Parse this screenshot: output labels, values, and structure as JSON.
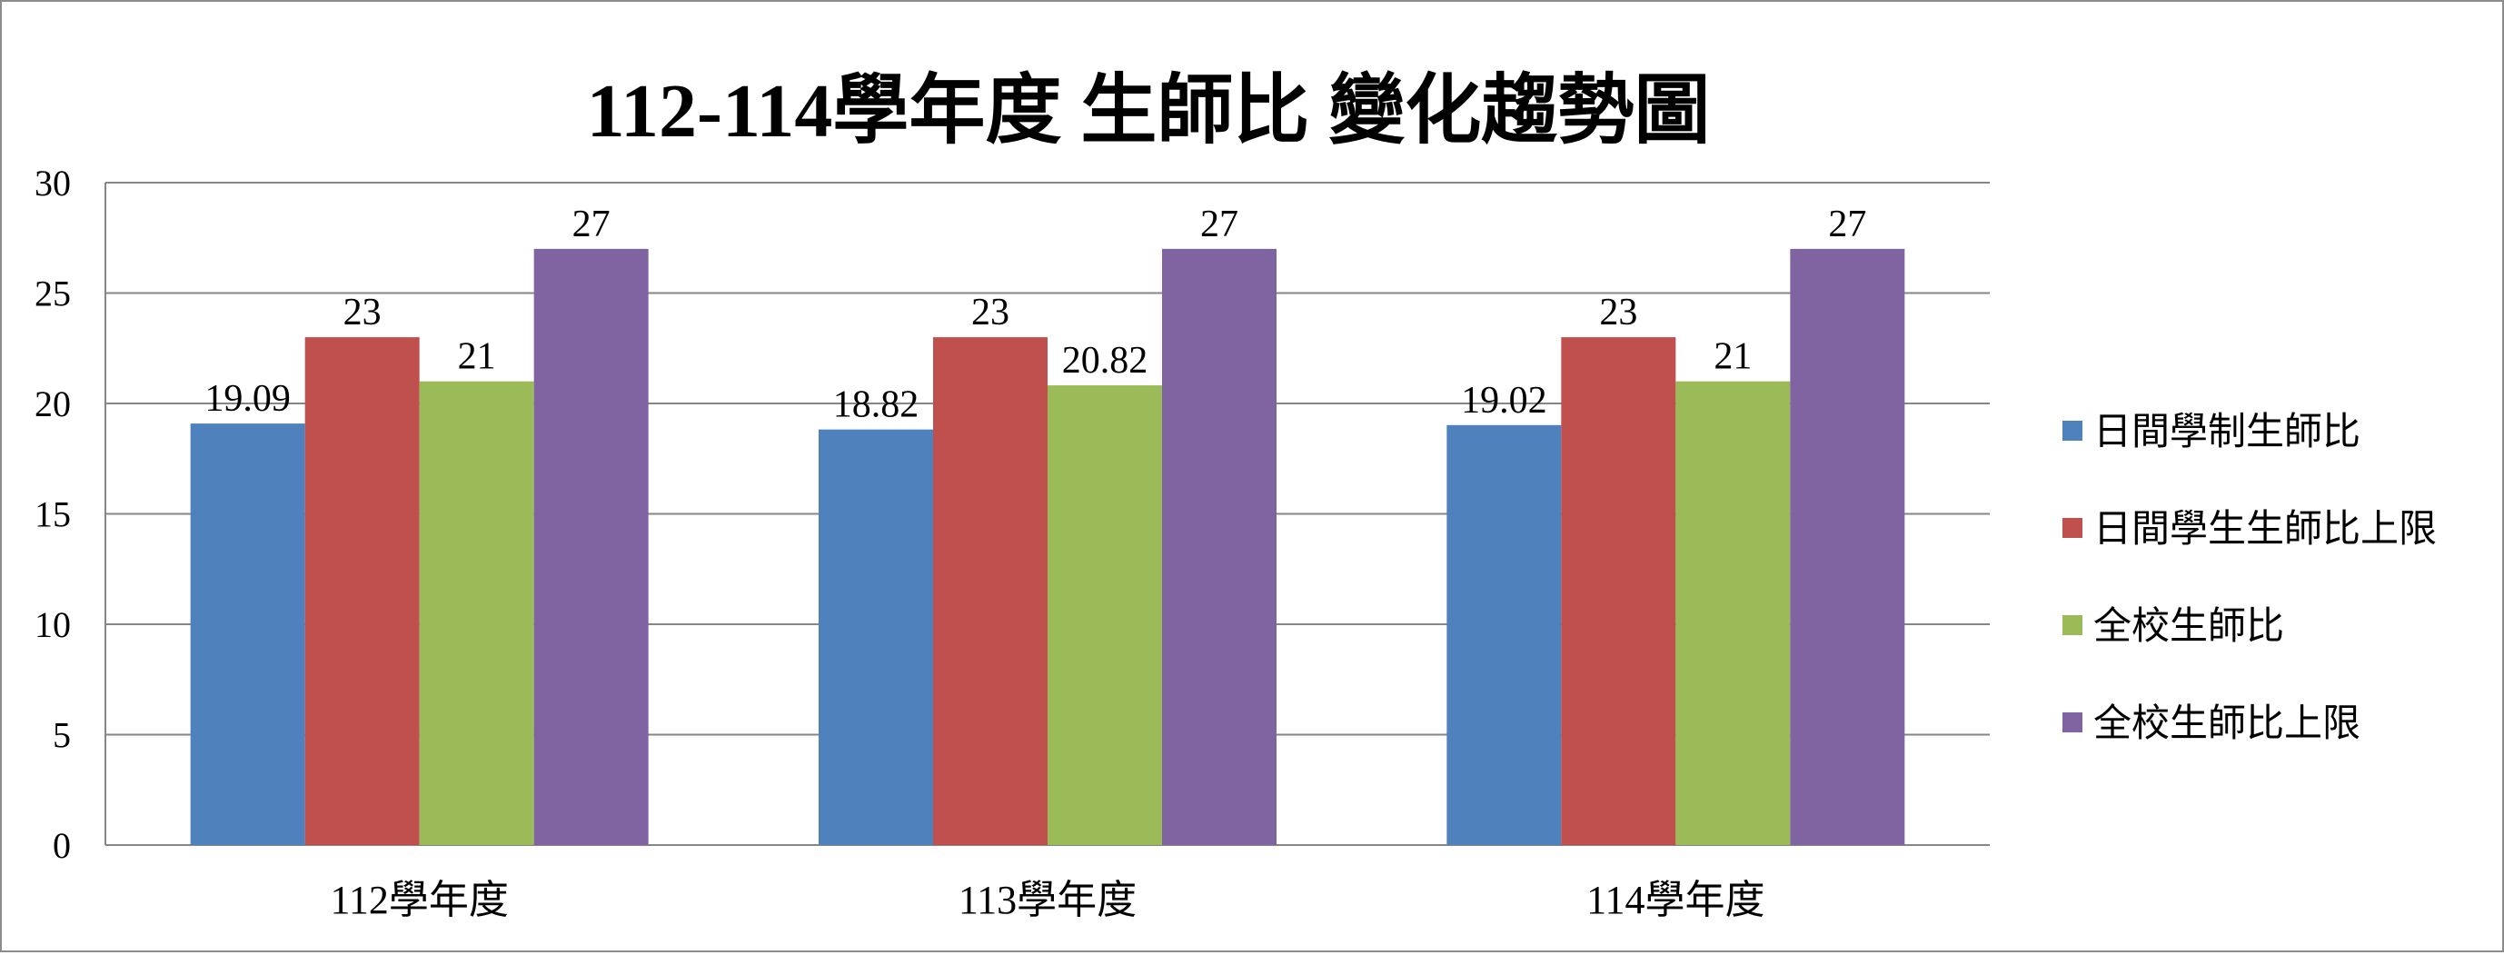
{
  "chart_data": {
    "type": "bar",
    "title": "112-114學年度 生師比 變化趨勢圖",
    "categories": [
      "112學年度",
      "113學年度",
      "114學年度"
    ],
    "series": [
      {
        "name": "日間學制生師比",
        "values": [
          19.09,
          18.82,
          19.02
        ],
        "labels": [
          "19.09",
          "18.82",
          "19.02"
        ],
        "color": "#4F81BD"
      },
      {
        "name": "日間學生生師比上限",
        "values": [
          23,
          23,
          23
        ],
        "labels": [
          "23",
          "23",
          "23"
        ],
        "color": "#C0504D"
      },
      {
        "name": "全校生師比",
        "values": [
          21,
          20.82,
          21
        ],
        "labels": [
          "21",
          "20.82",
          "21"
        ],
        "color": "#9BBB59"
      },
      {
        "name": "全校生師比上限",
        "values": [
          27,
          27,
          27
        ],
        "labels": [
          "27",
          "27",
          "27"
        ],
        "color": "#8064A2"
      }
    ],
    "yticks": [
      "0",
      "5",
      "10",
      "15",
      "20",
      "25",
      "30"
    ],
    "ylim": [
      0,
      30
    ],
    "grid": true,
    "legend_position": "right",
    "gridline_color": "#868686"
  }
}
